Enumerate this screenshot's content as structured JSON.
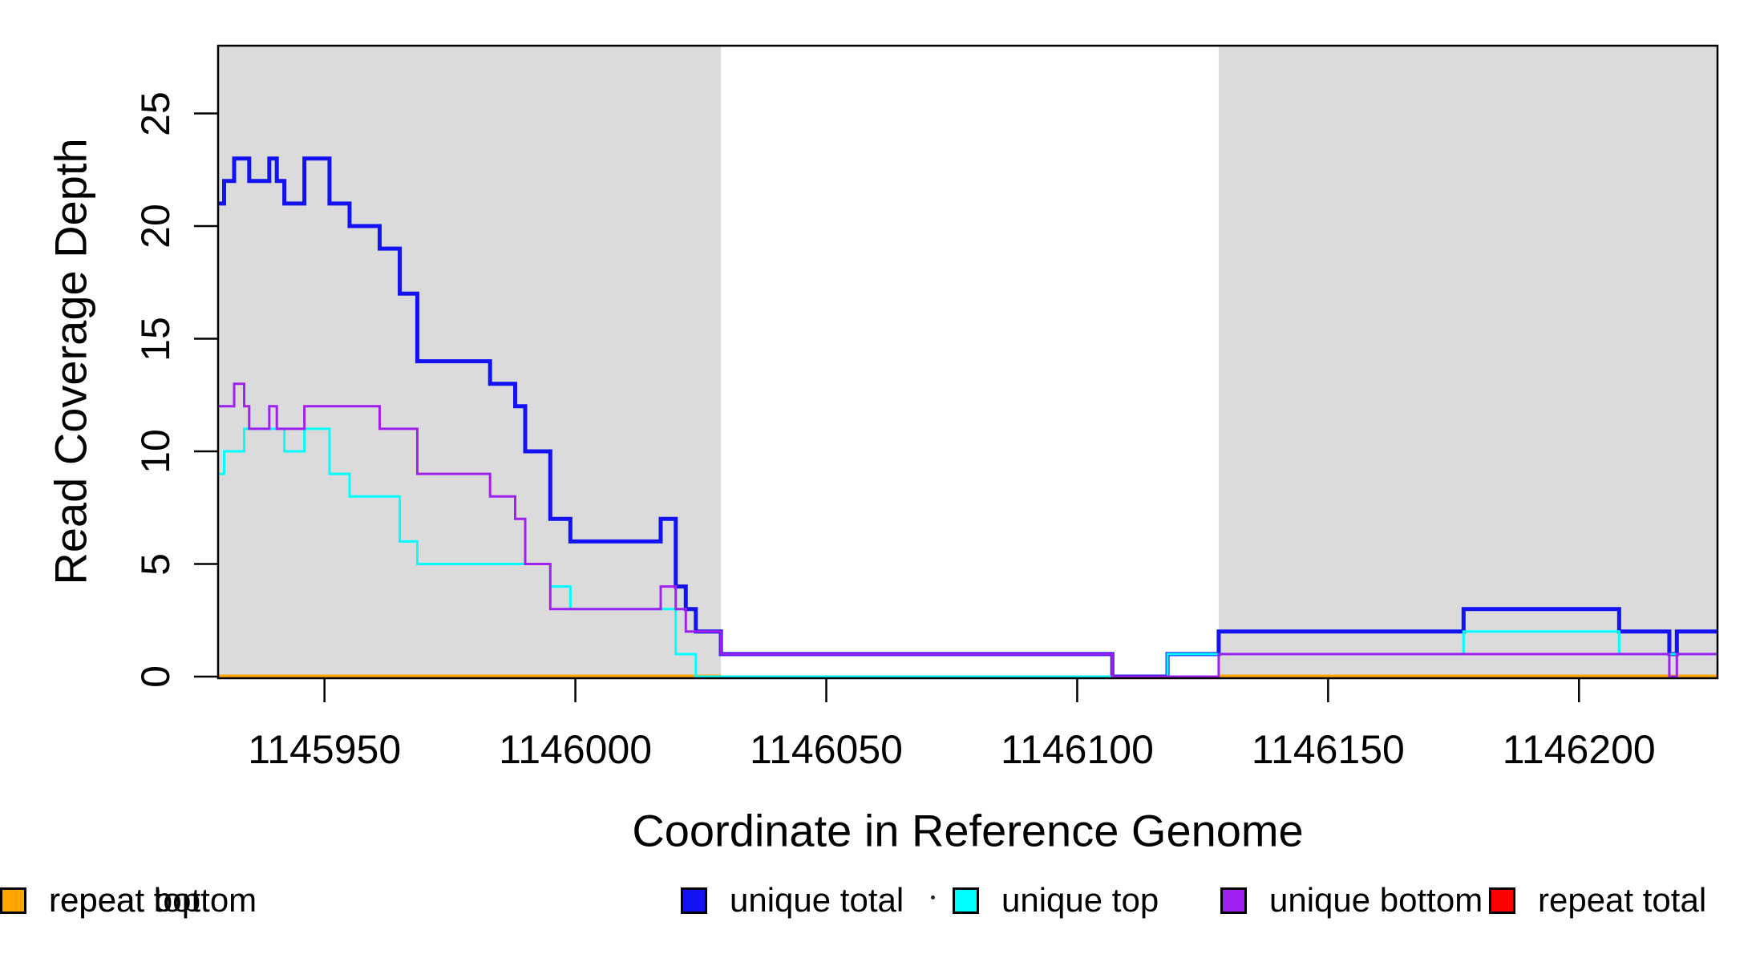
{
  "chart_data": {
    "type": "line",
    "subtype": "step-coverage",
    "title": "",
    "xlabel": "Coordinate in Reference Genome",
    "ylabel": "Read Coverage Depth",
    "x_domain": [
      1145928.8,
      1146227.6
    ],
    "y_domain": [
      0,
      28
    ],
    "x_ticks": [
      1145950,
      1146000,
      1146050,
      1146100,
      1146150,
      1146200
    ],
    "y_ticks": [
      0,
      5,
      10,
      15,
      20,
      25
    ],
    "grid": false,
    "legend_position": "bottom",
    "background_color": "#FFFFFF",
    "shade_color": "#DBDBDB",
    "shaded_regions": [
      [
        1145928.8,
        1146029
      ],
      [
        1146128.2,
        1146227.6
      ]
    ],
    "series": [
      {
        "name": "repeat top",
        "color": "#FFFF00",
        "width": 3,
        "steps": [
          [
            1145928.8,
            0
          ]
        ]
      },
      {
        "name": "repeat total",
        "color": "#FF0000",
        "width": 2.5,
        "steps": [
          [
            1145928.8,
            0
          ]
        ]
      },
      {
        "name": "repeat bottom",
        "color": "#FFA500",
        "width": 5,
        "segments": [
          [
            1145928.8,
            1146029,
            0
          ],
          [
            1146128.2,
            1146227.6,
            0
          ]
        ]
      },
      {
        "name": "unique total",
        "color": "#1212F2",
        "width": 5,
        "steps": [
          [
            1145928.8,
            21
          ],
          [
            1145930,
            22
          ],
          [
            1145932,
            23
          ],
          [
            1145935,
            22
          ],
          [
            1145939,
            23
          ],
          [
            1145940.5,
            22
          ],
          [
            1145942,
            21
          ],
          [
            1145946,
            23
          ],
          [
            1145951,
            21
          ],
          [
            1145955,
            20
          ],
          [
            1145961,
            19
          ],
          [
            1145965,
            17
          ],
          [
            1145968.5,
            14
          ],
          [
            1145983,
            13
          ],
          [
            1145988,
            12
          ],
          [
            1145990,
            10
          ],
          [
            1145995,
            7
          ],
          [
            1145999,
            6
          ],
          [
            1146017,
            7
          ],
          [
            1146020,
            4
          ],
          [
            1146022,
            3
          ],
          [
            1146024,
            2
          ],
          [
            1146029,
            1
          ],
          [
            1146107,
            0
          ],
          [
            1146118,
            1
          ],
          [
            1146128.2,
            2
          ],
          [
            1146177,
            3
          ],
          [
            1146208,
            2
          ],
          [
            1146218,
            1
          ],
          [
            1146219.5,
            2
          ]
        ]
      },
      {
        "name": "unique top",
        "color": "#00FFFF",
        "width": 3,
        "steps": [
          [
            1145928.8,
            9
          ],
          [
            1145930,
            10
          ],
          [
            1145934,
            11
          ],
          [
            1145942,
            10
          ],
          [
            1145946,
            11
          ],
          [
            1145951,
            9
          ],
          [
            1145955,
            8
          ],
          [
            1145965,
            6
          ],
          [
            1145968.5,
            5
          ],
          [
            1145995,
            4
          ],
          [
            1145999,
            3
          ],
          [
            1146020,
            1
          ],
          [
            1146024,
            0
          ],
          [
            1146118,
            1
          ],
          [
            1146177,
            2
          ],
          [
            1146208,
            1
          ]
        ]
      },
      {
        "name": "unique bottom",
        "color": "#A020F0",
        "width": 3,
        "steps": [
          [
            1145928.8,
            12
          ],
          [
            1145932,
            13
          ],
          [
            1145934,
            12
          ],
          [
            1145935,
            11
          ],
          [
            1145939,
            12
          ],
          [
            1145940.5,
            11
          ],
          [
            1145946,
            12
          ],
          [
            1145961,
            11
          ],
          [
            1145968.5,
            9
          ],
          [
            1145983,
            8
          ],
          [
            1145988,
            7
          ],
          [
            1145990,
            5
          ],
          [
            1145995,
            3
          ],
          [
            1146017,
            4
          ],
          [
            1146020,
            3
          ],
          [
            1146022,
            2
          ],
          [
            1146029,
            1
          ],
          [
            1146107,
            0
          ],
          [
            1146128.2,
            1
          ],
          [
            1146218,
            0
          ],
          [
            1146219.5,
            1
          ]
        ]
      }
    ]
  },
  "legend": {
    "items": [
      {
        "label": "unique total",
        "color": "#1212F2"
      },
      {
        "label": "unique top",
        "color": "#00FFFF"
      },
      {
        "label": "unique bottom",
        "color": "#A020F0"
      },
      {
        "label": "repeat total",
        "color": "#FF0000"
      },
      {
        "label": "repeat top",
        "color": "#FFFF00"
      },
      {
        "label": "repeat bottom",
        "color": "#FFA500"
      }
    ]
  }
}
